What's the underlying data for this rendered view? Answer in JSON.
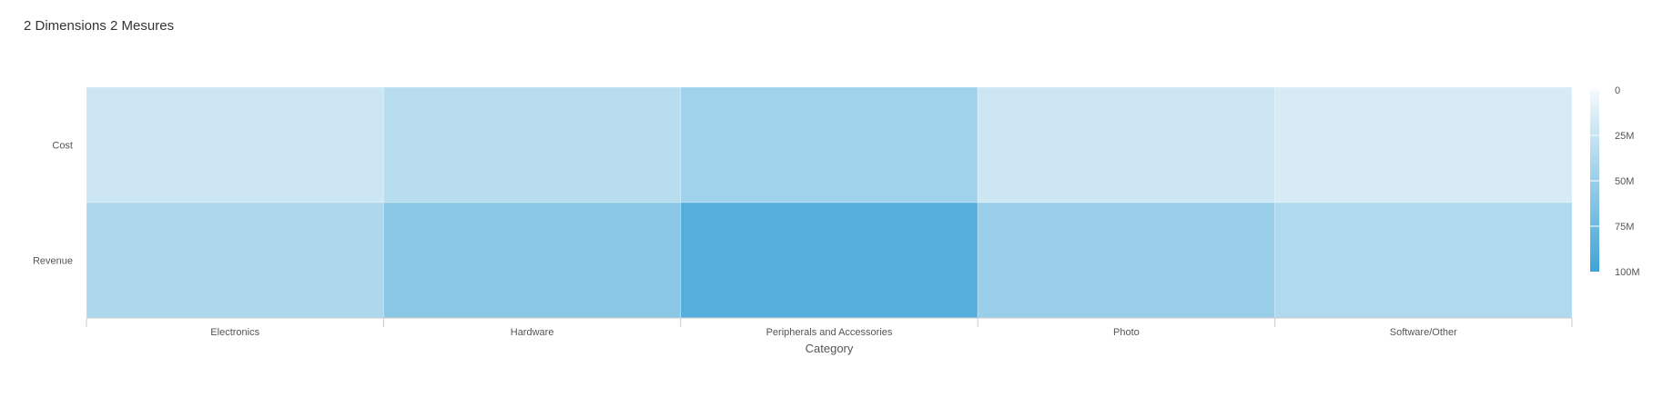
{
  "header": {
    "title": "2 Dimensions 2 Mesures"
  },
  "chart_data": {
    "type": "heatmap",
    "title": "2 Dimensions 2 Mesures",
    "xlabel": "Category",
    "ylabel": "",
    "x_categories": [
      "Electronics",
      "Hardware",
      "Peripherals and Accessories",
      "Photo",
      "Software/Other"
    ],
    "y_categories": [
      "Cost",
      "Revenue"
    ],
    "values": [
      [
        22000000,
        33000000,
        46000000,
        22000000,
        16000000
      ],
      [
        40000000,
        58000000,
        88000000,
        50000000,
        38000000
      ]
    ],
    "color_scale": {
      "min": 0,
      "max": 100000000,
      "min_color": "#f4f9fc",
      "max_color": "#3fa4d6",
      "tick_labels": [
        "0",
        "25M",
        "50M",
        "75M",
        "100M"
      ],
      "tick_values": [
        0,
        25000000,
        50000000,
        75000000,
        100000000
      ]
    },
    "legend_position": "right"
  }
}
